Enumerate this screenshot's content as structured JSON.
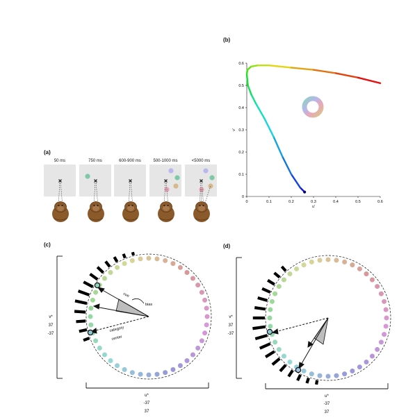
{
  "panels": {
    "a": {
      "label": "(a)"
    },
    "b": {
      "label": "(b)"
    },
    "c": {
      "label": "(c)"
    },
    "d": {
      "label": "(d)"
    }
  },
  "trial_timeline": {
    "steps": [
      {
        "duration": "50 ms"
      },
      {
        "duration": "750 ms"
      },
      {
        "duration": "600-900 ms"
      },
      {
        "duration": "500-1000 ms"
      },
      {
        "duration": "<5000 ms"
      }
    ]
  },
  "colors": {
    "screen_bg": "#e6e6e6",
    "monkey": "#8a5a2b",
    "monkey_dark": "#5e3a18",
    "wedge": "#bdbdbd",
    "cue_green": "#7ec9a6",
    "choice_blue": "#b9b7ee",
    "choice_pink": "#e5a5b4",
    "choice_tan": "#d8b98c"
  },
  "chart_data": {
    "type": "line",
    "title": "",
    "xlabel": "u'",
    "ylabel": "v'",
    "xlim": [
      0,
      0.6
    ],
    "ylim": [
      0,
      0.6
    ],
    "xticks": [
      "0",
      "0.1",
      "0.2",
      "0.3",
      "0.4",
      "0.5",
      "0.6"
    ],
    "yticks": [
      "0",
      "0.1",
      "0.2",
      "0.3",
      "0.4",
      "0.5",
      "0.6"
    ],
    "series": [
      {
        "x": [
          0.26,
          0.24,
          0.2,
          0.16,
          0.12,
          0.08,
          0.04,
          0.02,
          0.005,
          0.0,
          0.003,
          0.02,
          0.05,
          0.1,
          0.2,
          0.3,
          0.4,
          0.5,
          0.6
        ],
        "y": [
          0.02,
          0.04,
          0.1,
          0.18,
          0.27,
          0.35,
          0.42,
          0.46,
          0.5,
          0.55,
          0.57,
          0.585,
          0.59,
          0.59,
          0.58,
          0.57,
          0.555,
          0.535,
          0.51
        ]
      }
    ],
    "grid": false
  },
  "diagram_c": {
    "bias_label": "bias",
    "cue_label": "cue",
    "category_label": "category",
    "center_label": "center",
    "axis_v_label": "v*",
    "axis_v_top": "37",
    "axis_v_bottom": "-37",
    "axis_u_label": "u*",
    "axis_u_left": "-37",
    "axis_u_right": "37"
  },
  "diagram_d": {
    "axis_v_label": "v*",
    "axis_v_top": "37",
    "axis_v_bottom": "-37",
    "axis_u_label": "u*",
    "axis_u_left": "-37",
    "axis_u_right": "37"
  }
}
